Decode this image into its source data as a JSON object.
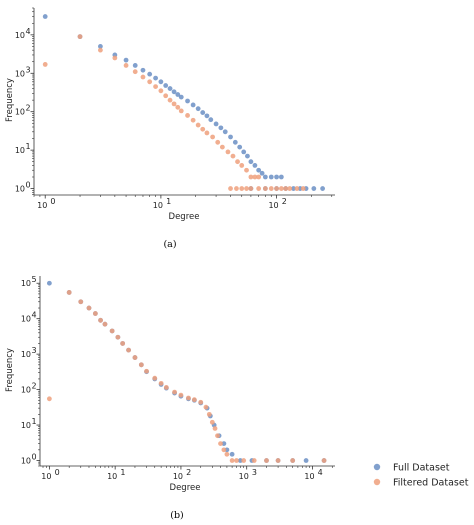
{
  "colors": {
    "full": "#6b8fc4",
    "filtered": "#eea07d",
    "axis": "#333333"
  },
  "panels": [
    {
      "label": "(a)"
    },
    {
      "label": "(b)"
    }
  ],
  "chart_data": [
    {
      "type": "scatter",
      "xscale": "log",
      "yscale": "log",
      "xlabel": "Degree",
      "ylabel": "Frequency",
      "xlim": [
        0.8,
        320
      ],
      "ylim": [
        0.68,
        50000
      ],
      "xticks": [
        {
          "v": 1,
          "m": "0"
        },
        {
          "v": 10,
          "m": "1"
        },
        {
          "v": 100,
          "m": "2"
        }
      ],
      "yticks": [
        {
          "v": 1,
          "m": "0"
        },
        {
          "v": 10,
          "m": "1"
        },
        {
          "v": 100,
          "m": "2"
        },
        {
          "v": 1000,
          "m": "3"
        },
        {
          "v": 10000,
          "m": "4"
        }
      ],
      "series": [
        {
          "key": "full",
          "points": [
            [
              1,
              30000
            ],
            [
              2,
              9000
            ],
            [
              3,
              5000
            ],
            [
              4,
              3000
            ],
            [
              5,
              2200
            ],
            [
              6,
              1600
            ],
            [
              7,
              1200
            ],
            [
              8,
              950
            ],
            [
              9,
              750
            ],
            [
              10,
              600
            ],
            [
              11,
              480
            ],
            [
              12,
              400
            ],
            [
              13,
              330
            ],
            [
              14,
              280
            ],
            [
              15,
              240
            ],
            [
              17,
              190
            ],
            [
              19,
              150
            ],
            [
              21,
              120
            ],
            [
              23,
              95
            ],
            [
              25,
              78
            ],
            [
              27,
              62
            ],
            [
              30,
              48
            ],
            [
              33,
              38
            ],
            [
              36,
              30
            ],
            [
              40,
              22
            ],
            [
              44,
              16
            ],
            [
              48,
              12
            ],
            [
              52,
              9
            ],
            [
              56,
              7
            ],
            [
              60,
              5
            ],
            [
              65,
              4
            ],
            [
              70,
              3
            ],
            [
              75,
              2.5
            ],
            [
              80,
              2
            ],
            [
              90,
              2
            ],
            [
              100,
              2
            ],
            [
              110,
              2
            ],
            [
              60,
              1
            ],
            [
              80,
              1
            ],
            [
              100,
              1
            ],
            [
              120,
              1
            ],
            [
              140,
              1
            ],
            [
              160,
              1
            ],
            [
              180,
              1
            ],
            [
              210,
              1
            ],
            [
              250,
              1
            ]
          ]
        },
        {
          "key": "filtered",
          "points": [
            [
              1,
              1700
            ],
            [
              2,
              9000
            ],
            [
              3,
              4000
            ],
            [
              4,
              2500
            ],
            [
              5,
              1600
            ],
            [
              6,
              1100
            ],
            [
              7,
              800
            ],
            [
              8,
              600
            ],
            [
              9,
              450
            ],
            [
              10,
              350
            ],
            [
              11,
              260
            ],
            [
              12,
              200
            ],
            [
              13,
              160
            ],
            [
              14,
              130
            ],
            [
              15,
              105
            ],
            [
              17,
              80
            ],
            [
              19,
              60
            ],
            [
              21,
              45
            ],
            [
              23,
              35
            ],
            [
              25,
              28
            ],
            [
              28,
              22
            ],
            [
              31,
              16
            ],
            [
              34,
              12
            ],
            [
              38,
              9
            ],
            [
              42,
              7
            ],
            [
              46,
              5
            ],
            [
              50,
              4
            ],
            [
              55,
              3
            ],
            [
              60,
              2
            ],
            [
              65,
              2
            ],
            [
              70,
              2
            ],
            [
              40,
              1
            ],
            [
              45,
              1
            ],
            [
              50,
              1
            ],
            [
              55,
              1
            ],
            [
              60,
              1
            ],
            [
              70,
              1
            ],
            [
              80,
              1
            ],
            [
              90,
              1
            ],
            [
              100,
              1
            ],
            [
              110,
              1
            ],
            [
              120,
              1
            ],
            [
              130,
              1
            ],
            [
              150,
              1
            ],
            [
              170,
              1
            ]
          ]
        }
      ]
    },
    {
      "type": "scatter",
      "xscale": "log",
      "yscale": "log",
      "xlabel": "Degree",
      "ylabel": "Frequency",
      "xlim": [
        0.72,
        22000
      ],
      "ylim": [
        0.7,
        160000
      ],
      "xticks": [
        {
          "v": 1,
          "m": "0"
        },
        {
          "v": 10,
          "m": "1"
        },
        {
          "v": 100,
          "m": "2"
        },
        {
          "v": 1000,
          "m": "3"
        },
        {
          "v": 10000,
          "m": "4"
        }
      ],
      "yticks": [
        {
          "v": 1,
          "m": "0"
        },
        {
          "v": 10,
          "m": "1"
        },
        {
          "v": 100,
          "m": "2"
        },
        {
          "v": 1000,
          "m": "3"
        },
        {
          "v": 10000,
          "m": "4"
        },
        {
          "v": 100000,
          "m": "5"
        }
      ],
      "series": [
        {
          "key": "full",
          "points": [
            [
              1,
              100000
            ],
            [
              2,
              55000
            ],
            [
              3,
              30000
            ],
            [
              4,
              20000
            ],
            [
              5,
              14000
            ],
            [
              6,
              9000
            ],
            [
              7,
              7000
            ],
            [
              9,
              4500
            ],
            [
              11,
              3000
            ],
            [
              13,
              2000
            ],
            [
              16,
              1300
            ],
            [
              20,
              800
            ],
            [
              25,
              500
            ],
            [
              30,
              320
            ],
            [
              40,
              200
            ],
            [
              50,
              140
            ],
            [
              60,
              110
            ],
            [
              80,
              80
            ],
            [
              100,
              65
            ],
            [
              130,
              55
            ],
            [
              160,
              50
            ],
            [
              200,
              42
            ],
            [
              250,
              30
            ],
            [
              280,
              18
            ],
            [
              320,
              10
            ],
            [
              380,
              5
            ],
            [
              450,
              3
            ],
            [
              500,
              2
            ],
            [
              600,
              1.5
            ],
            [
              800,
              1
            ],
            [
              1200,
              1
            ],
            [
              2000,
              1
            ],
            [
              3000,
              1
            ],
            [
              5000,
              1
            ],
            [
              8000,
              1
            ],
            [
              15000,
              1
            ]
          ]
        },
        {
          "key": "filtered",
          "points": [
            [
              1,
              55
            ],
            [
              2,
              55000
            ],
            [
              3,
              30000
            ],
            [
              4,
              20000
            ],
            [
              5,
              14000
            ],
            [
              6,
              9000
            ],
            [
              7,
              7000
            ],
            [
              9,
              4500
            ],
            [
              11,
              3000
            ],
            [
              13,
              2000
            ],
            [
              16,
              1300
            ],
            [
              20,
              800
            ],
            [
              25,
              500
            ],
            [
              30,
              330
            ],
            [
              40,
              210
            ],
            [
              50,
              150
            ],
            [
              60,
              115
            ],
            [
              80,
              85
            ],
            [
              100,
              70
            ],
            [
              130,
              58
            ],
            [
              160,
              52
            ],
            [
              200,
              44
            ],
            [
              240,
              32
            ],
            [
              270,
              20
            ],
            [
              300,
              12
            ],
            [
              330,
              8
            ],
            [
              360,
              5
            ],
            [
              400,
              3
            ],
            [
              450,
              2
            ],
            [
              500,
              1.5
            ],
            [
              600,
              1
            ],
            [
              700,
              1
            ],
            [
              900,
              1
            ],
            [
              1300,
              1
            ],
            [
              2000,
              1
            ],
            [
              3000,
              1
            ],
            [
              5000,
              1
            ],
            [
              15000,
              1
            ]
          ]
        }
      ]
    }
  ],
  "legend": [
    {
      "key": "full",
      "label": "Full Dataset"
    },
    {
      "key": "filtered",
      "label": "Filtered Dataset"
    }
  ]
}
